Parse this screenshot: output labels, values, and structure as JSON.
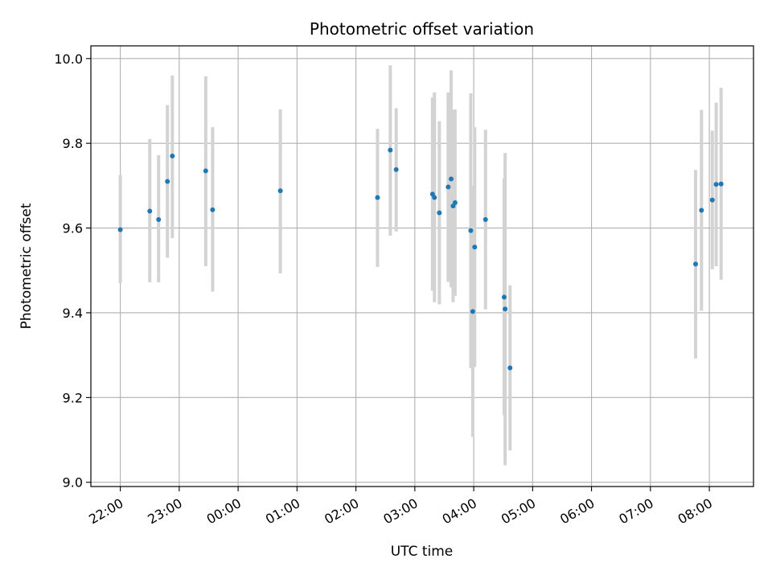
{
  "chart_data": {
    "type": "scatter",
    "title": "Photometric offset variation",
    "xlabel": "UTC time",
    "ylabel": "Photometric offset",
    "x_axis": "time",
    "xlim": [
      "21:30",
      "08:45"
    ],
    "ylim": [
      8.99,
      10.03
    ],
    "xticks": [
      "22:00",
      "23:00",
      "00:00",
      "01:00",
      "02:00",
      "03:00",
      "04:00",
      "05:00",
      "06:00",
      "07:00",
      "08:00"
    ],
    "yticks": [
      9.0,
      9.2,
      9.4,
      9.6,
      9.8,
      10.0
    ],
    "grid": true,
    "colors": {
      "points": "#1f77b4",
      "error_bars": "#d3d3d3",
      "grid": "#b0b0b0"
    },
    "points": [
      {
        "x": "22:00",
        "y": 9.596,
        "ylo": 9.47,
        "yhi": 9.725
      },
      {
        "x": "22:30",
        "y": 9.64,
        "ylo": 9.472,
        "yhi": 9.81
      },
      {
        "x": "22:39",
        "y": 9.62,
        "ylo": 9.472,
        "yhi": 9.772
      },
      {
        "x": "22:48",
        "y": 9.71,
        "ylo": 9.53,
        "yhi": 9.89
      },
      {
        "x": "22:53",
        "y": 9.77,
        "ylo": 9.576,
        "yhi": 9.96
      },
      {
        "x": "23:27",
        "y": 9.735,
        "ylo": 9.51,
        "yhi": 9.958
      },
      {
        "x": "23:34",
        "y": 9.643,
        "ylo": 9.45,
        "yhi": 9.838
      },
      {
        "x": "00:43",
        "y": 9.688,
        "ylo": 9.493,
        "yhi": 9.88
      },
      {
        "x": "02:22",
        "y": 9.672,
        "ylo": 9.508,
        "yhi": 9.834
      },
      {
        "x": "02:35",
        "y": 9.784,
        "ylo": 9.582,
        "yhi": 9.984
      },
      {
        "x": "02:41",
        "y": 9.738,
        "ylo": 9.592,
        "yhi": 9.883
      },
      {
        "x": "03:18",
        "y": 9.68,
        "ylo": 9.452,
        "yhi": 9.908
      },
      {
        "x": "03:20",
        "y": 9.672,
        "ylo": 9.425,
        "yhi": 9.92
      },
      {
        "x": "03:25",
        "y": 9.636,
        "ylo": 9.42,
        "yhi": 9.852
      },
      {
        "x": "03:34",
        "y": 9.697,
        "ylo": 9.473,
        "yhi": 9.92
      },
      {
        "x": "03:37",
        "y": 9.716,
        "ylo": 9.46,
        "yhi": 9.972
      },
      {
        "x": "03:39",
        "y": 9.652,
        "ylo": 9.425,
        "yhi": 9.879
      },
      {
        "x": "03:41",
        "y": 9.66,
        "ylo": 9.44,
        "yhi": 9.88
      },
      {
        "x": "03:57",
        "y": 9.594,
        "ylo": 9.27,
        "yhi": 9.918
      },
      {
        "x": "03:59",
        "y": 9.403,
        "ylo": 9.107,
        "yhi": 9.7
      },
      {
        "x": "04:01",
        "y": 9.555,
        "ylo": 9.272,
        "yhi": 9.838
      },
      {
        "x": "04:12",
        "y": 9.62,
        "ylo": 9.408,
        "yhi": 9.832
      },
      {
        "x": "04:31",
        "y": 9.437,
        "ylo": 9.158,
        "yhi": 9.717
      },
      {
        "x": "04:32",
        "y": 9.409,
        "ylo": 9.04,
        "yhi": 9.777
      },
      {
        "x": "04:37",
        "y": 9.27,
        "ylo": 9.075,
        "yhi": 9.465
      },
      {
        "x": "07:46",
        "y": 9.515,
        "ylo": 9.292,
        "yhi": 9.737
      },
      {
        "x": "07:52",
        "y": 9.642,
        "ylo": 9.405,
        "yhi": 9.879
      },
      {
        "x": "08:03",
        "y": 9.666,
        "ylo": 9.503,
        "yhi": 9.83
      },
      {
        "x": "08:07",
        "y": 9.703,
        "ylo": 9.51,
        "yhi": 9.896
      },
      {
        "x": "08:12",
        "y": 9.704,
        "ylo": 9.478,
        "yhi": 9.931
      }
    ]
  }
}
